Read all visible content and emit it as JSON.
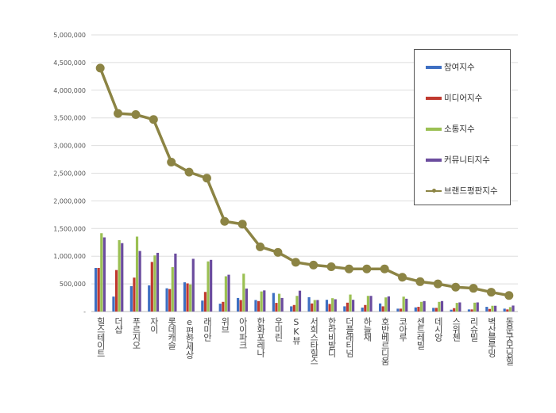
{
  "chart_data": {
    "type": "bar",
    "title": "",
    "xlabel": "",
    "ylabel": "",
    "ylim": [
      0,
      5000000
    ],
    "yticks": [
      0,
      500000,
      1000000,
      1500000,
      2000000,
      2500000,
      3000000,
      3500000,
      4000000,
      4500000,
      5000000
    ],
    "ytick_labels": [
      "-",
      "500,000",
      "1,000,000",
      "1,500,000",
      "2,000,000",
      "2,500,000",
      "3,000,000",
      "3,500,000",
      "4,000,000",
      "4,500,000",
      "5,000,000"
    ],
    "grid": true,
    "legend_position": "top-right",
    "categories": [
      "힐스테이트",
      "더샵",
      "푸르지오",
      "자이",
      "롯데캐슬",
      "e편한세상",
      "래미안",
      "위브",
      "아이파크",
      "한화포레나",
      "우미린",
      "SK뷰",
      "서희스타힐스",
      "한라비발디",
      "더플래티넘",
      "하늘채",
      "호반베르디움",
      "코아루",
      "센트레빌",
      "데시앙",
      "스위첸",
      "리슈빌",
      "벽산블루밍",
      "동문굿모닝힐"
    ],
    "series": [
      {
        "name": "참여지수",
        "kind": "bar",
        "color": "#3e6fc2",
        "values": [
          788000,
          270000,
          458000,
          472000,
          420000,
          528000,
          198000,
          142000,
          245000,
          208000,
          335000,
          94000,
          259000,
          212000,
          94000,
          71000,
          146000,
          52000,
          75000,
          66000,
          33000,
          38000,
          85000,
          52000
        ]
      },
      {
        "name": "미디어지수",
        "kind": "bar",
        "color": "#c0392f",
        "values": [
          788000,
          750000,
          613000,
          896000,
          406000,
          509000,
          354000,
          175000,
          208000,
          189000,
          156000,
          118000,
          146000,
          137000,
          160000,
          118000,
          94000,
          52000,
          85000,
          66000,
          61000,
          38000,
          47000,
          38000
        ]
      },
      {
        "name": "소통지수",
        "kind": "bar",
        "color": "#9bc053",
        "values": [
          1415000,
          1290000,
          1354000,
          1014000,
          802000,
          490000,
          906000,
          637000,
          684000,
          363000,
          321000,
          283000,
          208000,
          241000,
          307000,
          283000,
          255000,
          269000,
          175000,
          175000,
          156000,
          160000,
          104000,
          80000
        ]
      },
      {
        "name": "커뮤니티지수",
        "kind": "bar",
        "color": "#6b4c9e",
        "values": [
          1340000,
          1236000,
          1094000,
          1061000,
          1047000,
          953000,
          934000,
          665000,
          415000,
          382000,
          245000,
          377000,
          208000,
          222000,
          212000,
          283000,
          274000,
          231000,
          189000,
          189000,
          165000,
          165000,
          104000,
          108000
        ]
      },
      {
        "name": "브랜드평판지수",
        "kind": "line",
        "color": "#8c8444",
        "values": [
          4400000,
          3580000,
          3560000,
          3470000,
          2700000,
          2520000,
          2410000,
          1630000,
          1580000,
          1170000,
          1070000,
          890000,
          840000,
          810000,
          770000,
          770000,
          770000,
          620000,
          540000,
          500000,
          440000,
          420000,
          350000,
          290000
        ]
      }
    ]
  }
}
